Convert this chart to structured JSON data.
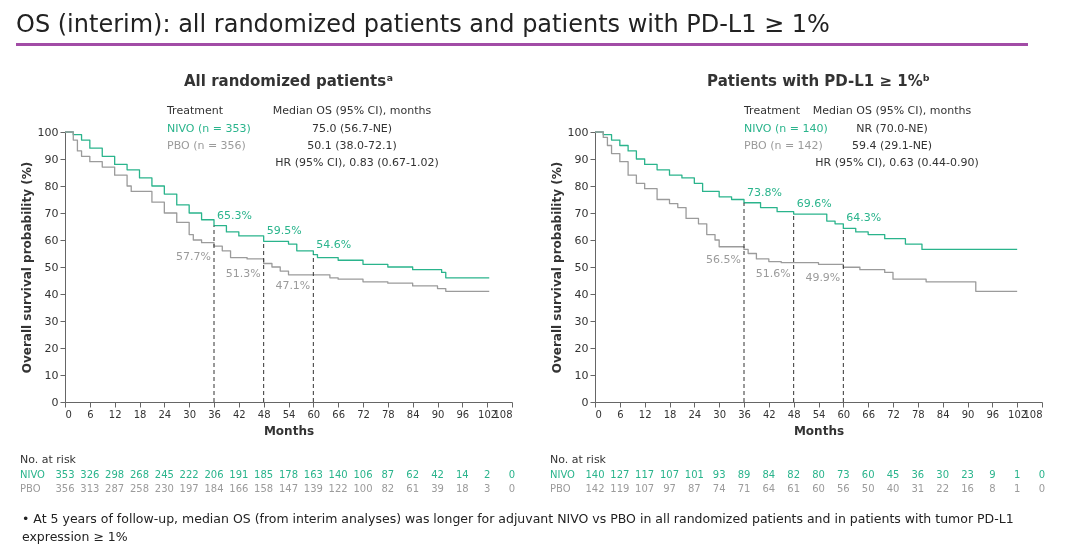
{
  "chart_data": [
    {
      "type": "step",
      "title": "All randomized patientsᵃ",
      "xlabel": "Months",
      "ylabel": "Overall survival probability (%)",
      "xlim": [
        0,
        108
      ],
      "xticks": [
        0,
        6,
        12,
        18,
        24,
        30,
        36,
        42,
        48,
        54,
        60,
        66,
        72,
        78,
        84,
        90,
        96,
        102,
        108
      ],
      "ylim": [
        0,
        100
      ],
      "yticks": [
        0,
        10,
        20,
        30,
        40,
        50,
        60,
        70,
        80,
        90,
        100
      ],
      "grid": false,
      "legend": false,
      "series": [
        {
          "name": "NIVO",
          "color": "#2ab48c",
          "x": [
            0,
            2,
            4,
            6,
            9,
            12,
            15,
            18,
            21,
            24,
            27,
            30,
            33,
            36,
            39,
            42,
            48,
            54,
            56,
            60,
            61,
            66,
            72,
            78,
            84,
            91,
            92,
            102.5
          ],
          "values": [
            100,
            99,
            97,
            94,
            91,
            88,
            86,
            83,
            80,
            77,
            73,
            70,
            67.5,
            65.3,
            63,
            61.5,
            59.5,
            58.5,
            56,
            54.6,
            53.5,
            52.5,
            51,
            50,
            49,
            48,
            46,
            46
          ]
        },
        {
          "name": "PBO",
          "color": "#9b9b9b",
          "x": [
            0,
            2,
            3,
            4,
            6,
            9,
            12,
            15,
            16,
            21,
            24,
            27,
            30,
            31,
            33,
            36,
            38,
            40,
            44,
            48,
            50,
            52,
            54,
            60,
            64,
            66,
            72,
            78,
            84,
            90,
            92,
            102.5
          ],
          "values": [
            100,
            97,
            93,
            91,
            89,
            87,
            84,
            80,
            78,
            74,
            70,
            66.5,
            62,
            60,
            59,
            57.7,
            56,
            53.5,
            53,
            51.3,
            50,
            48.5,
            47.1,
            47.1,
            46,
            45.5,
            44.5,
            44,
            43,
            42,
            41,
            41
          ]
        }
      ],
      "ref_lines": [
        {
          "axis": "x",
          "value": 36,
          "line_style": "dashed",
          "color": "#333333"
        },
        {
          "axis": "x",
          "value": 48,
          "line_style": "dashed",
          "color": "#333333"
        },
        {
          "axis": "x",
          "value": 60,
          "line_style": "dashed",
          "color": "#333333"
        }
      ],
      "annotations": [
        "Treatment",
        "Median OS (95% CI), months",
        "NIVO (n = 353)",
        "75.0 (56.7-NE)",
        "PBO (n = 356)",
        "50.1 (38.0-72.1)",
        "HR (95% CI), 0.83 (0.67-1.02)",
        "No. at risk",
        "353 326 298 268 245 222 206 191 185 178 163 140 106 87 62 42 14 2 0",
        "356 313 287 258 230 197 184 166 158 147 139 122 100 82 61 39 18 3 0",
        "OS (interim): all randomized patients and patients with PD-L1 ≥ 1%",
        "• At 5 years of follow-up, median OS (from interim analyses) was longer for adjuvant NIVO vs PBO in all randomized patients and in patients with tumor PD-L1 expression ≥ 1%",
        {
          "text": "65.3%",
          "x": 36,
          "y": 65.3
        },
        {
          "text": "59.5%",
          "x": 48,
          "y": 59.5
        },
        {
          "text": "54.6%",
          "x": 60,
          "y": 54.6
        },
        {
          "text": "57.7%",
          "x": 36,
          "y": 57.7
        },
        {
          "text": "51.3%",
          "x": 48,
          "y": 51.3
        },
        {
          "text": "47.1%",
          "x": 60,
          "y": 47.1
        }
      ]
    },
    {
      "type": "step",
      "title": "Patients with PD-L1 ≥ 1%ᵇ",
      "xlabel": "Months",
      "ylabel": "Overall survival probability (%)",
      "xlim": [
        0,
        108
      ],
      "xticks": [
        0,
        6,
        12,
        18,
        24,
        30,
        36,
        42,
        48,
        54,
        60,
        66,
        72,
        78,
        84,
        90,
        96,
        102,
        108
      ],
      "ylim": [
        0,
        100
      ],
      "yticks": [
        0,
        10,
        20,
        30,
        40,
        50,
        60,
        70,
        80,
        90,
        100
      ],
      "grid": false,
      "legend": false,
      "series": [
        {
          "name": "NIVO",
          "color": "#2ab48c",
          "x": [
            0,
            2,
            4,
            6,
            8,
            10,
            12,
            15,
            18,
            21,
            24,
            26,
            30,
            33,
            36,
            40,
            44,
            48,
            54,
            56,
            58,
            60,
            63,
            66,
            70,
            75,
            79,
            102
          ],
          "values": [
            100,
            99,
            97,
            95,
            93,
            90,
            88,
            86,
            84,
            83,
            81,
            78,
            76,
            75,
            73.8,
            72,
            70.5,
            69.6,
            69.6,
            67,
            66,
            64.3,
            63,
            62,
            60.5,
            58.5,
            56.5,
            56.5
          ]
        },
        {
          "name": "PBO",
          "color": "#9b9b9b",
          "x": [
            0,
            2,
            3,
            4,
            6,
            8,
            10,
            12,
            15,
            18,
            20,
            22,
            25,
            27,
            29,
            30,
            36,
            37,
            39,
            42,
            45,
            48,
            54,
            60,
            64,
            70,
            72,
            80,
            84,
            92,
            102
          ],
          "values": [
            100,
            98,
            95,
            92,
            89,
            84,
            81,
            79,
            75,
            73.5,
            72,
            68,
            66,
            62,
            60,
            57.5,
            56.5,
            55,
            53,
            52,
            51.6,
            51.6,
            51,
            49.9,
            49,
            48,
            45.5,
            44.5,
            44.5,
            41,
            41
          ]
        }
      ],
      "ref_lines": [
        {
          "axis": "x",
          "value": 36,
          "line_style": "dashed",
          "color": "#333333"
        },
        {
          "axis": "x",
          "value": 48,
          "line_style": "dashed",
          "color": "#333333"
        },
        {
          "axis": "x",
          "value": 60,
          "line_style": "dashed",
          "color": "#333333"
        }
      ],
      "annotations": [
        "Treatment",
        "Median OS (95% CI), months",
        "NIVO (n = 140)",
        "NR (70.0-NE)",
        "PBO (n = 142)",
        "59.4 (29.1-NE)",
        "HR (95% CI), 0.63 (0.44-0.90)",
        "No. at risk",
        "140 127 117 107 101 93 89 84 82 80 73 60 45 36 30 23 9 1 0",
        "142 119 107 97 87 74 71 64 61 60 56 50 40 31 22 16 8 1 0",
        {
          "text": "73.8%",
          "x": 36,
          "y": 73.8
        },
        {
          "text": "69.6%",
          "x": 48,
          "y": 69.6
        },
        {
          "text": "64.3%",
          "x": 60,
          "y": 64.3
        },
        {
          "text": "56.5%",
          "x": 36,
          "y": 56.5
        },
        {
          "text": "51.6%",
          "x": 48,
          "y": 51.6
        },
        {
          "text": "49.9%",
          "x": 60,
          "y": 49.9
        }
      ]
    }
  ]
}
